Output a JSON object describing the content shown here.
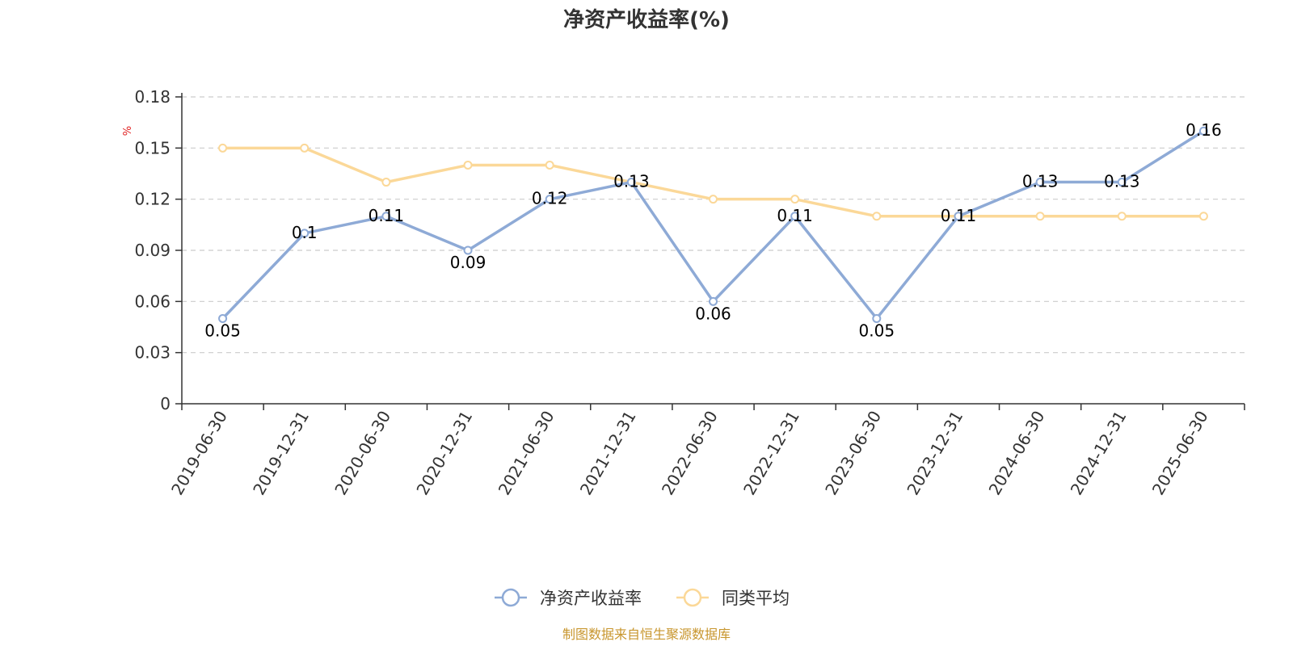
{
  "chart_data": {
    "type": "line",
    "title": "净资产收益率(%)",
    "ylabel": "%",
    "ylim": [
      0,
      0.18
    ],
    "yticks": [
      "0",
      "0.03",
      "0.06",
      "0.09",
      "0.12",
      "0.15",
      "0.18"
    ],
    "grid": true,
    "legend_position": "bottom",
    "categories": [
      "2019-06-30",
      "2019-12-31",
      "2020-06-30",
      "2020-12-31",
      "2021-06-30",
      "2021-12-31",
      "2022-06-30",
      "2022-12-31",
      "2023-06-30",
      "2023-12-31",
      "2024-06-30",
      "2024-12-31",
      "2025-06-30"
    ],
    "series": [
      {
        "name": "净资产收益率",
        "color": "#8eaad6",
        "values": [
          0.05,
          0.1,
          0.11,
          0.09,
          0.12,
          0.13,
          0.06,
          0.11,
          0.05,
          0.11,
          0.13,
          0.13,
          0.16
        ],
        "labels": [
          "0.05",
          "0.1",
          "0.11",
          "0.09",
          "0.12",
          "0.13",
          "0.06",
          "0.11",
          "0.05",
          "0.11",
          "0.13",
          "0.13",
          "0.16"
        ]
      },
      {
        "name": "同类平均",
        "color": "#fbd898",
        "values": [
          0.15,
          0.15,
          0.13,
          0.14,
          0.14,
          0.13,
          0.12,
          0.12,
          0.11,
          0.11,
          0.11,
          0.11,
          0.11
        ]
      }
    ],
    "source": "制图数据来自恒生聚源数据库"
  }
}
